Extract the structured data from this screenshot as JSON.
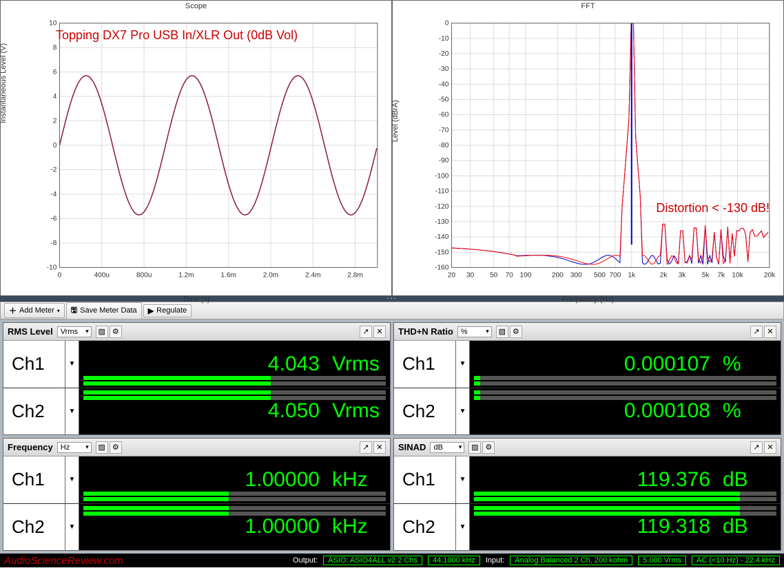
{
  "scope_chart": {
    "title": "Scope",
    "annotation": "Topping DX7 Pro USB In/XLR Out (0dB Vol)",
    "xlabel": "Time (s)",
    "ylabel": "Instantaneous Level (V)",
    "xticks": [
      "0",
      "400u",
      "800u",
      "1.2m",
      "1.6m",
      "2.0m",
      "2.4m",
      "2.8m"
    ],
    "yticks": [
      "-10",
      "-8",
      "-6",
      "-4",
      "-2",
      "0",
      "2",
      "4",
      "6",
      "8",
      "10"
    ],
    "ylim": [
      -10,
      10
    ],
    "xlim": [
      0,
      3
    ],
    "amplitude": 5.7,
    "freq_khz": 1.0,
    "line_color": "#8b1a4d",
    "grid_color": "#dddddd",
    "background": "#ffffff"
  },
  "fft_chart": {
    "title": "FFT",
    "annotation": "Distortion < -130 dB!",
    "xlabel": "Frequency (Hz)",
    "ylabel": "Level (dBrA)",
    "xticks": [
      "20",
      "30",
      "50",
      "70",
      "100",
      "200",
      "300",
      "500",
      "700",
      "1k",
      "2k",
      "3k",
      "5k",
      "7k",
      "10k",
      "20k"
    ],
    "yticks": [
      "-160",
      "-150",
      "-140",
      "-130",
      "-120",
      "-110",
      "-100",
      "-90",
      "-80",
      "-70",
      "-60",
      "-50",
      "-40",
      "-30",
      "-20",
      "-10",
      "0"
    ],
    "ylim": [
      -160,
      0
    ],
    "peak_freq": 1000,
    "peak_level": 0,
    "noise_floor": -155,
    "harmonic_level": -135,
    "colors": {
      "ch1": "#ff0000",
      "ch2": "#0000cc"
    },
    "grid_color": "#dddddd"
  },
  "toolbar": {
    "add_meter": "Add Meter",
    "save_data": "Save Meter Data",
    "regulate": "Regulate"
  },
  "meters": [
    {
      "title": "RMS Level",
      "unit_select": "Vrms",
      "ch1": {
        "label": "Ch1",
        "value": "4.043",
        "unit": "Vrms",
        "bar_pct": 62
      },
      "ch2": {
        "label": "Ch2",
        "value": "4.050",
        "unit": "Vrms",
        "bar_pct": 62
      }
    },
    {
      "title": "THD+N Ratio",
      "unit_select": "%",
      "ch1": {
        "label": "Ch1",
        "value": "0.000107",
        "unit": "%",
        "bar_pct": 2
      },
      "ch2": {
        "label": "Ch2",
        "value": "0.000108",
        "unit": "%",
        "bar_pct": 2
      }
    },
    {
      "title": "Frequency",
      "unit_select": "Hz",
      "ch1": {
        "label": "Ch1",
        "value": "1.00000",
        "unit": "kHz",
        "bar_pct": 48
      },
      "ch2": {
        "label": "Ch2",
        "value": "1.00000",
        "unit": "kHz",
        "bar_pct": 48
      }
    },
    {
      "title": "SINAD",
      "unit_select": "dB",
      "ch1": {
        "label": "Ch1",
        "value": "119.376",
        "unit": "dB",
        "bar_pct": 88
      },
      "ch2": {
        "label": "Ch2",
        "value": "119.318",
        "unit": "dB",
        "bar_pct": 88
      }
    }
  ],
  "status": {
    "site": "AudioScienceReview.com",
    "output_label": "Output:",
    "output_device": "ASIO: ASIO4ALL v2 2 Chs",
    "output_rate": "44.1000 kHz",
    "input_label": "Input:",
    "input_device": "Analog Balanced 2 Ch, 200 kohm",
    "input_level": "5.000 Vrms",
    "input_coupling": "AC (<10 Hz) - 22.4 kHz"
  },
  "colors": {
    "readout_text": "#00ff00",
    "bar_fill": "#00ff00",
    "bar_bg": "#555555",
    "annotation": "#cc0000"
  }
}
